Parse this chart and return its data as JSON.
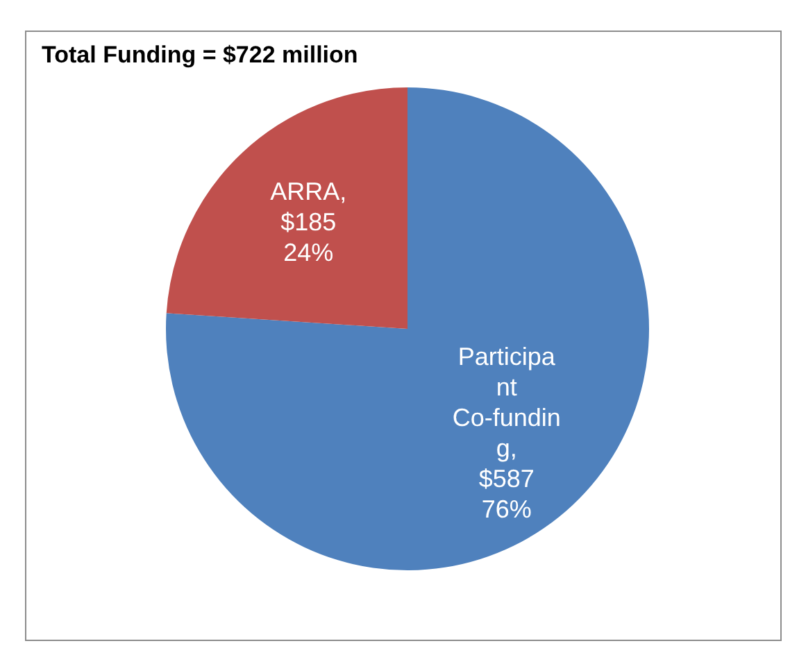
{
  "chart_data": {
    "type": "pie",
    "title": "Total Funding = $722 million",
    "categories": [
      "Participant Co-funding",
      "ARRA"
    ],
    "values": [
      587,
      185
    ],
    "colors": [
      "#4f81bd",
      "#c0504d"
    ],
    "value_labels": [
      ", $587 76%",
      ", $185 24%"
    ],
    "legend": false
  }
}
